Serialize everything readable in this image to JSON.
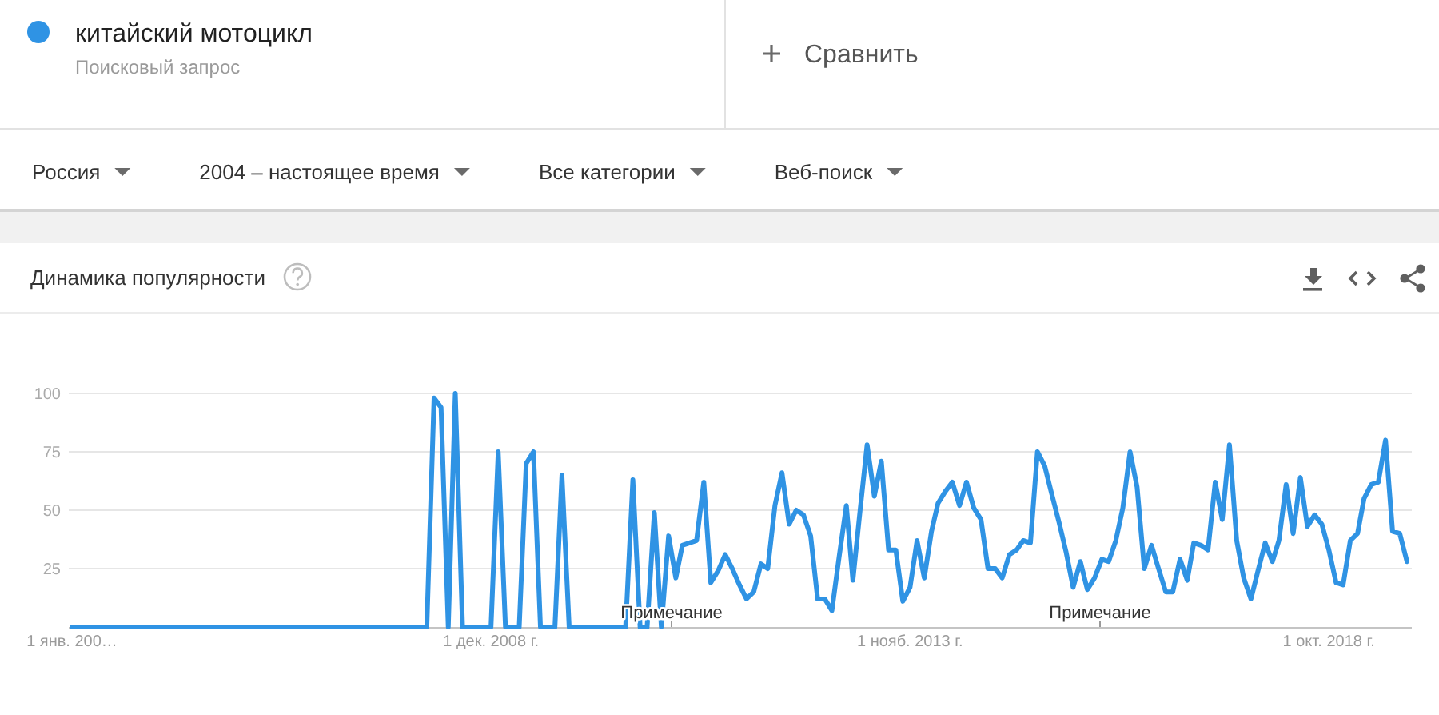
{
  "chart_data": {
    "type": "line",
    "title": "Динамика популярности",
    "x": [
      "2004-01",
      "2004-02",
      "2004-03",
      "2004-04",
      "2004-05",
      "2004-06",
      "2004-07",
      "2004-08",
      "2004-09",
      "2004-10",
      "2004-11",
      "2004-12",
      "2005-01",
      "2005-02",
      "2005-03",
      "2005-04",
      "2005-05",
      "2005-06",
      "2005-07",
      "2005-08",
      "2005-09",
      "2005-10",
      "2005-11",
      "2005-12",
      "2006-01",
      "2006-02",
      "2006-03",
      "2006-04",
      "2006-05",
      "2006-06",
      "2006-07",
      "2006-08",
      "2006-09",
      "2006-10",
      "2006-11",
      "2006-12",
      "2007-01",
      "2007-02",
      "2007-03",
      "2007-04",
      "2007-05",
      "2007-06",
      "2007-07",
      "2007-08",
      "2007-09",
      "2007-10",
      "2007-11",
      "2007-12",
      "2008-01",
      "2008-02",
      "2008-03",
      "2008-04",
      "2008-05",
      "2008-06",
      "2008-07",
      "2008-08",
      "2008-09",
      "2008-10",
      "2008-11",
      "2008-12",
      "2009-01",
      "2009-02",
      "2009-03",
      "2009-04",
      "2009-05",
      "2009-06",
      "2009-07",
      "2009-08",
      "2009-09",
      "2009-10",
      "2009-11",
      "2009-12",
      "2010-01",
      "2010-02",
      "2010-03",
      "2010-04",
      "2010-05",
      "2010-06",
      "2010-07",
      "2010-08",
      "2010-09",
      "2010-10",
      "2010-11",
      "2010-12",
      "2011-01",
      "2011-02",
      "2011-03",
      "2011-04",
      "2011-05",
      "2011-06",
      "2011-07",
      "2011-08",
      "2011-09",
      "2011-10",
      "2011-11",
      "2011-12",
      "2012-01",
      "2012-02",
      "2012-03",
      "2012-04",
      "2012-05",
      "2012-06",
      "2012-07",
      "2012-08",
      "2012-09",
      "2012-10",
      "2012-11",
      "2012-12",
      "2013-01",
      "2013-02",
      "2013-03",
      "2013-04",
      "2013-05",
      "2013-06",
      "2013-07",
      "2013-08",
      "2013-09",
      "2013-10",
      "2013-11",
      "2013-12",
      "2014-01",
      "2014-02",
      "2014-03",
      "2014-04",
      "2014-05",
      "2014-06",
      "2014-07",
      "2014-08",
      "2014-09",
      "2014-10",
      "2014-11",
      "2014-12",
      "2015-01",
      "2015-02",
      "2015-03",
      "2015-04",
      "2015-05",
      "2015-06",
      "2015-07",
      "2015-08",
      "2015-09",
      "2015-10",
      "2015-11",
      "2015-12",
      "2016-01",
      "2016-02",
      "2016-03",
      "2016-04",
      "2016-05",
      "2016-06",
      "2016-07",
      "2016-08",
      "2016-09",
      "2016-10",
      "2016-11",
      "2016-12",
      "2017-01",
      "2017-02",
      "2017-03",
      "2017-04",
      "2017-05",
      "2017-06",
      "2017-07",
      "2017-08",
      "2017-09",
      "2017-10",
      "2017-11",
      "2017-12",
      "2018-01",
      "2018-02",
      "2018-03",
      "2018-04",
      "2018-05",
      "2018-06",
      "2018-07",
      "2018-08",
      "2018-09",
      "2018-10",
      "2018-11",
      "2018-12",
      "2019-01",
      "2019-02",
      "2019-03",
      "2019-04",
      "2019-05",
      "2019-06",
      "2019-07",
      "2019-08",
      "2019-09"
    ],
    "series": [
      {
        "name": "китайский мотоцикл",
        "color": "#2f93e4",
        "values": [
          0,
          0,
          0,
          0,
          0,
          0,
          0,
          0,
          0,
          0,
          0,
          0,
          0,
          0,
          0,
          0,
          0,
          0,
          0,
          0,
          0,
          0,
          0,
          0,
          0,
          0,
          0,
          0,
          0,
          0,
          0,
          0,
          0,
          0,
          0,
          0,
          0,
          0,
          0,
          0,
          0,
          0,
          0,
          0,
          0,
          0,
          0,
          0,
          0,
          0,
          0,
          98,
          94,
          0,
          100,
          0,
          0,
          0,
          0,
          0,
          75,
          0,
          0,
          0,
          70,
          75,
          0,
          0,
          0,
          65,
          0,
          0,
          0,
          0,
          0,
          0,
          0,
          0,
          0,
          63,
          0,
          0,
          49,
          0,
          39,
          21,
          35,
          36,
          37,
          62,
          19,
          24,
          31,
          25,
          18,
          12,
          15,
          27,
          25,
          52,
          66,
          44,
          50,
          48,
          39,
          12,
          12,
          7,
          30,
          52,
          20,
          50,
          78,
          56,
          71,
          33,
          33,
          11,
          17,
          37,
          21,
          41,
          53,
          58,
          62,
          52,
          62,
          51,
          46,
          25,
          25,
          21,
          31,
          33,
          37,
          36,
          75,
          69,
          57,
          45,
          32,
          17,
          28,
          16,
          21,
          29,
          28,
          37,
          51,
          75,
          60,
          25,
          35,
          25,
          15,
          15,
          29,
          20,
          36,
          35,
          33,
          62,
          46,
          78,
          37,
          21,
          12,
          24,
          36,
          28,
          37,
          61,
          40,
          64,
          43,
          48,
          44,
          33,
          19,
          18,
          37,
          40,
          55,
          61,
          62,
          80,
          41,
          40,
          28
        ]
      }
    ],
    "xlim": [
      "2004-01",
      "2019-09"
    ],
    "xticks": [
      {
        "value": "2004-01",
        "label": "1 янв. 200…"
      },
      {
        "value": "2008-12",
        "label": "1 дек. 2008 г."
      },
      {
        "value": "2013-11",
        "label": "1 нояб. 2013 г."
      },
      {
        "value": "2018-10",
        "label": "1 окт. 2018 г."
      }
    ],
    "ylim": [
      0,
      100
    ],
    "yticks": [
      25,
      50,
      75,
      100
    ],
    "grid": "y",
    "legend": "top left",
    "marker": "none",
    "line_style": "solid",
    "annotations": [
      "Поисковый запрос",
      "Сравнить",
      "Россия",
      "2004 – настоящее время",
      "Все категории",
      "Веб-поиск",
      "Примечание",
      "Примечание"
    ]
  }
}
